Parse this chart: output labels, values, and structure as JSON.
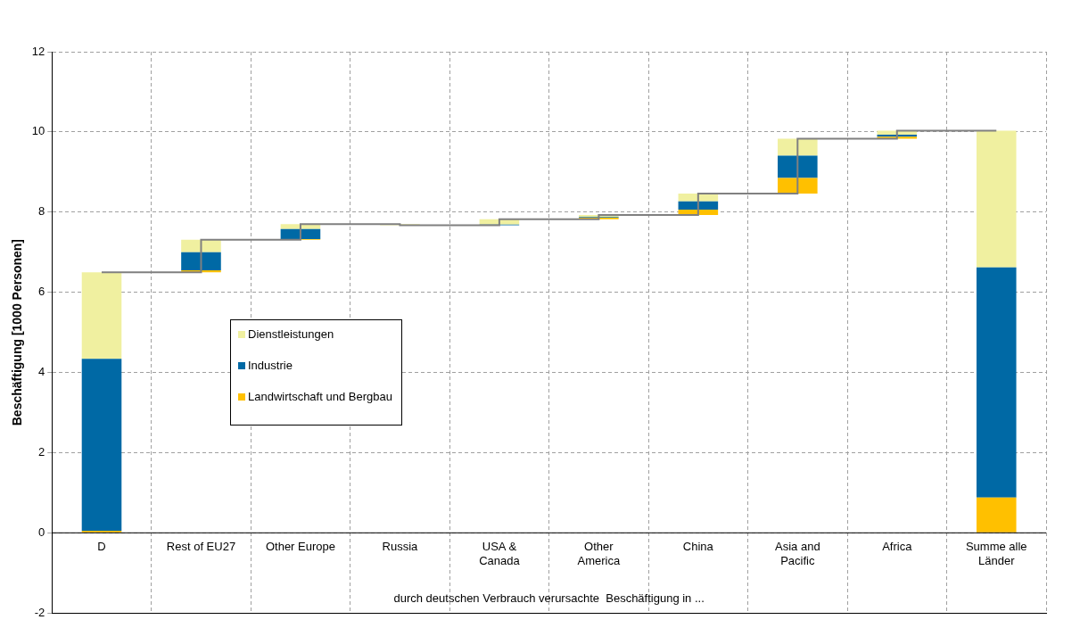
{
  "chart_data": {
    "type": "bar",
    "ylabel": "Beschäftigung [1000 Personen]",
    "xlabel": "durch deutschen Verbrauch verursachte  Beschäftigung in ...",
    "categories": [
      "D",
      "Rest of EU27",
      "Other Europe",
      "Russia",
      "USA &\nCanada",
      "Other\nAmerica",
      "China",
      "Asia and\nPacific",
      "Africa",
      "Summe alle\nLänder"
    ],
    "series": [
      {
        "name": "Landwirtschaft und Bergbau",
        "color": "#ffc000",
        "base": [
          0,
          6.5,
          7.31,
          null,
          null,
          7.82,
          7.93,
          8.46,
          9.83,
          0
        ],
        "values": [
          0.05,
          0.05,
          0.02,
          null,
          null,
          0.04,
          0.13,
          0.39,
          0.05,
          0.88
        ]
      },
      {
        "name": "Industrie",
        "color": "#0069a5",
        "base": [
          0.05,
          6.55,
          7.33,
          null,
          7.67,
          7.86,
          8.06,
          8.85,
          9.88,
          0.88
        ],
        "values": [
          4.29,
          0.45,
          0.25,
          null,
          0.02,
          0.02,
          0.21,
          0.56,
          0.05,
          5.74
        ]
      },
      {
        "name": "Dienstleistungen",
        "color": "#f0f0a0",
        "base": [
          4.34,
          7,
          7.58,
          7.7,
          7.69,
          7.88,
          8.27,
          9.41,
          9.93,
          6.62
        ],
        "values": [
          2.16,
          0.31,
          0.12,
          -0.03,
          0.13,
          0.05,
          0.19,
          0.42,
          0.1,
          3.41
        ]
      },
      {
        "type": "step",
        "color": "#808080",
        "values": [
          6.5,
          7.31,
          7.7,
          7.67,
          7.82,
          7.93,
          8.46,
          9.83,
          10.03,
          10.03
        ]
      }
    ],
    "ylim": [
      -2,
      12
    ],
    "yticks": [
      -2,
      0,
      2,
      4,
      6,
      8,
      10,
      12
    ],
    "grid": true,
    "legend": "center left"
  }
}
